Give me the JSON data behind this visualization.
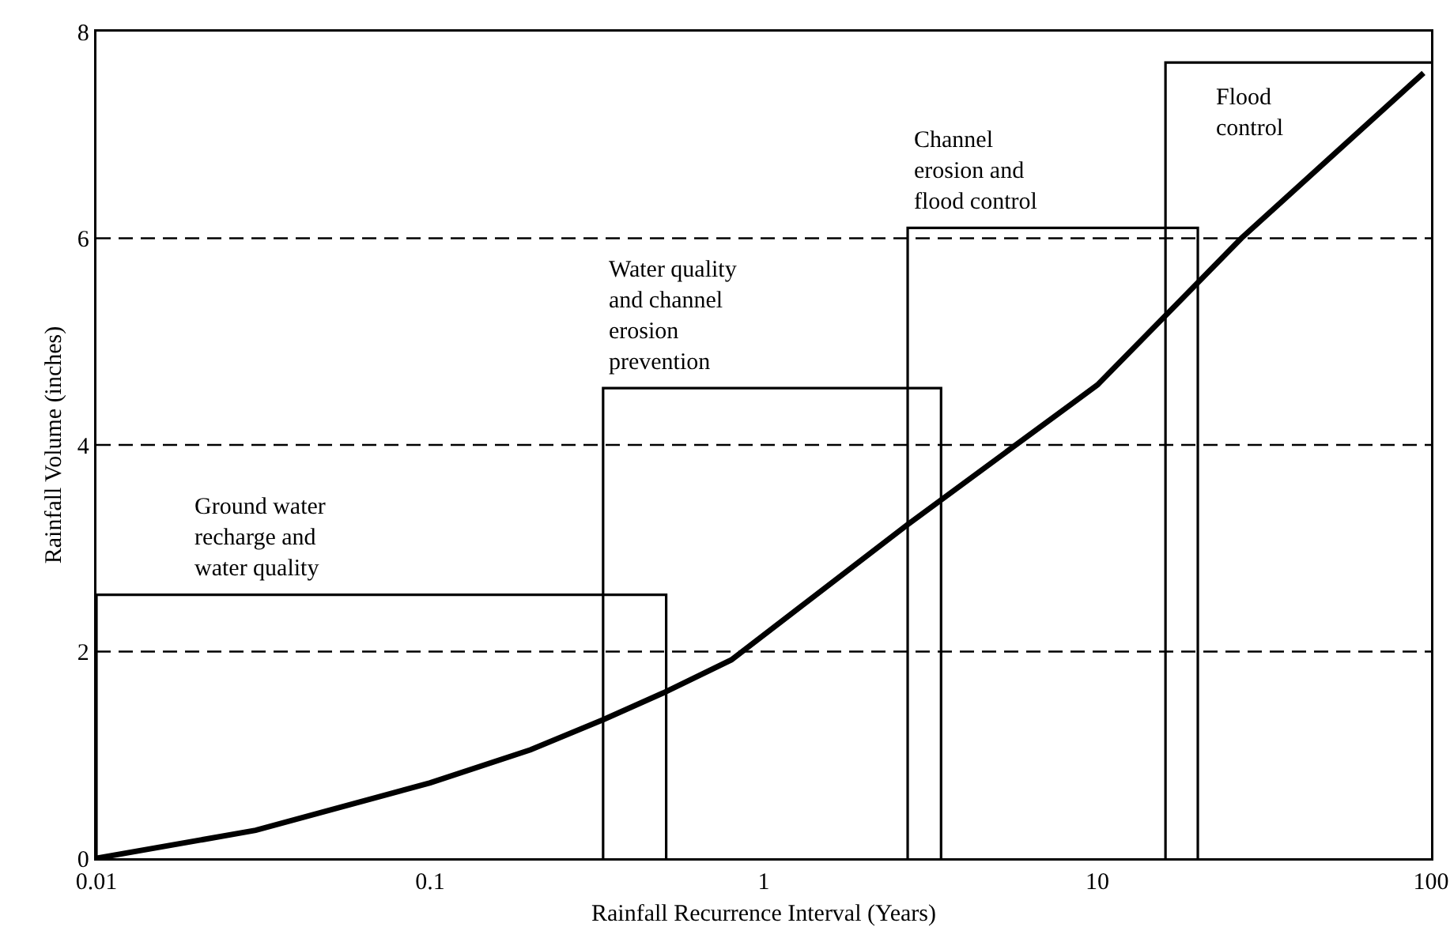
{
  "chart_data": {
    "type": "line",
    "xlabel": "Rainfall Recurrence Interval (Years)",
    "ylabel": "Rainfall Volume (inches)",
    "log": "x",
    "xlim": [
      0.01,
      100
    ],
    "xticks": [
      0.01,
      0.1,
      1,
      10,
      100
    ],
    "ylim": [
      0,
      8
    ],
    "yticks": [
      0,
      2,
      4,
      6,
      8
    ],
    "grid": "y",
    "legend": false,
    "marker": "none",
    "line_style": "solid",
    "series": [
      {
        "color": "#000000",
        "x": [
          0.01,
          0.03,
          0.1,
          0.2,
          0.33,
          0.5,
          0.8,
          2.7,
          10,
          27,
          95
        ],
        "values": [
          0,
          0.27,
          0.73,
          1.05,
          1.34,
          1.6,
          1.92,
          3.23,
          4.58,
          6,
          7.6
        ]
      },
      {
        "name": "Ground water\nrecharge and\nwater quality",
        "color": "#000000",
        "x": [
          0.01,
          0.01,
          0.51,
          0.51
        ],
        "values": [
          0,
          2.55,
          2.55,
          0
        ]
      },
      {
        "name": "Water quality\nand channel\nerosion\nprevention",
        "color": "#000000",
        "x": [
          0.33,
          0.33,
          3.4,
          3.4
        ],
        "values": [
          0,
          4.55,
          4.55,
          0
        ]
      },
      {
        "name": "Channel\nerosion and\nflood control",
        "color": "#000000",
        "x": [
          2.7,
          2.7,
          20,
          20
        ],
        "values": [
          0,
          6.1,
          6.1,
          0
        ]
      },
      {
        "name": "Flood\ncontrol",
        "color": "#000000",
        "x": [
          16,
          16,
          100
        ],
        "values": [
          0,
          7.7,
          7.7
        ]
      }
    ]
  }
}
